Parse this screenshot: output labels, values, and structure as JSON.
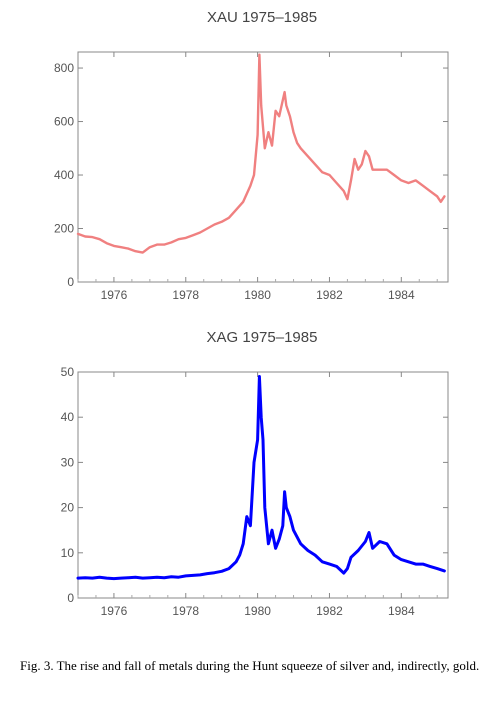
{
  "chart_data": [
    {
      "type": "line",
      "title": "XAU 1975–1985",
      "xlabel": "",
      "ylabel": "",
      "xlim": [
        1975,
        1985.3
      ],
      "ylim": [
        0,
        860
      ],
      "x_ticks": [
        1976,
        1978,
        1980,
        1982,
        1984
      ],
      "y_ticks": [
        0,
        200,
        400,
        600,
        800
      ],
      "grid": false,
      "color": "#f08080",
      "series": [
        {
          "x": [
            1975.0,
            1975.2,
            1975.4,
            1975.6,
            1975.8,
            1976.0,
            1976.2,
            1976.4,
            1976.6,
            1976.8,
            1977.0,
            1977.2,
            1977.4,
            1977.6,
            1977.8,
            1978.0,
            1978.2,
            1978.4,
            1978.6,
            1978.8,
            1979.0,
            1979.2,
            1979.4,
            1979.6,
            1979.8,
            1979.9,
            1980.0,
            1980.05,
            1980.1,
            1980.2,
            1980.3,
            1980.4,
            1980.5,
            1980.6,
            1980.7,
            1980.75,
            1980.8,
            1980.9,
            1981.0,
            1981.1,
            1981.2,
            1981.4,
            1981.6,
            1981.8,
            1982.0,
            1982.2,
            1982.4,
            1982.5,
            1982.6,
            1982.7,
            1982.8,
            1982.9,
            1983.0,
            1983.1,
            1983.2,
            1983.4,
            1983.6,
            1983.8,
            1984.0,
            1984.2,
            1984.4,
            1984.6,
            1984.8,
            1985.0,
            1985.1,
            1985.2
          ],
          "y": [
            180,
            170,
            168,
            160,
            145,
            135,
            130,
            125,
            115,
            110,
            130,
            140,
            140,
            148,
            160,
            165,
            175,
            185,
            200,
            215,
            225,
            240,
            270,
            300,
            360,
            400,
            550,
            850,
            660,
            500,
            560,
            510,
            640,
            620,
            680,
            710,
            660,
            620,
            560,
            520,
            500,
            470,
            440,
            410,
            400,
            370,
            340,
            310,
            380,
            460,
            420,
            440,
            490,
            470,
            420,
            420,
            420,
            400,
            380,
            370,
            380,
            360,
            340,
            320,
            300,
            320
          ]
        }
      ]
    },
    {
      "type": "line",
      "title": "XAG 1975–1985",
      "xlabel": "",
      "ylabel": "",
      "xlim": [
        1975,
        1985.3
      ],
      "ylim": [
        0,
        50
      ],
      "x_ticks": [
        1976,
        1978,
        1980,
        1982,
        1984
      ],
      "y_ticks": [
        0,
        10,
        20,
        30,
        40,
        50
      ],
      "grid": false,
      "color": "#0000ff",
      "series": [
        {
          "x": [
            1975.0,
            1975.2,
            1975.4,
            1975.6,
            1975.8,
            1976.0,
            1976.2,
            1976.4,
            1976.6,
            1976.8,
            1977.0,
            1977.2,
            1977.4,
            1977.6,
            1977.8,
            1978.0,
            1978.2,
            1978.4,
            1978.6,
            1978.8,
            1979.0,
            1979.2,
            1979.4,
            1979.5,
            1979.6,
            1979.7,
            1979.8,
            1979.9,
            1980.0,
            1980.05,
            1980.1,
            1980.15,
            1980.2,
            1980.3,
            1980.4,
            1980.5,
            1980.6,
            1980.7,
            1980.75,
            1980.8,
            1980.9,
            1981.0,
            1981.2,
            1981.4,
            1981.6,
            1981.8,
            1982.0,
            1982.2,
            1982.4,
            1982.5,
            1982.6,
            1982.8,
            1983.0,
            1983.1,
            1983.2,
            1983.4,
            1983.6,
            1983.8,
            1984.0,
            1984.2,
            1984.4,
            1984.6,
            1984.8,
            1985.0,
            1985.2
          ],
          "y": [
            4.4,
            4.5,
            4.4,
            4.6,
            4.4,
            4.3,
            4.4,
            4.5,
            4.6,
            4.4,
            4.5,
            4.6,
            4.5,
            4.7,
            4.6,
            4.9,
            5.0,
            5.1,
            5.4,
            5.6,
            5.9,
            6.5,
            8.0,
            9.5,
            12.0,
            18.0,
            16.0,
            30.0,
            35.0,
            49.0,
            40.0,
            35.0,
            20.0,
            12.0,
            15.0,
            11.0,
            13.0,
            16.0,
            23.5,
            20.0,
            18.0,
            15.0,
            12.0,
            10.5,
            9.5,
            8.0,
            7.5,
            7.0,
            5.5,
            6.5,
            9.0,
            10.5,
            12.5,
            14.5,
            11.0,
            12.5,
            12.0,
            9.5,
            8.5,
            8.0,
            7.5,
            7.5,
            7.0,
            6.5,
            6.0
          ]
        }
      ]
    }
  ],
  "caption": "Fig. 3.  The rise and fall of metals during the Hunt squeeze of silver and, indirectly, gold."
}
